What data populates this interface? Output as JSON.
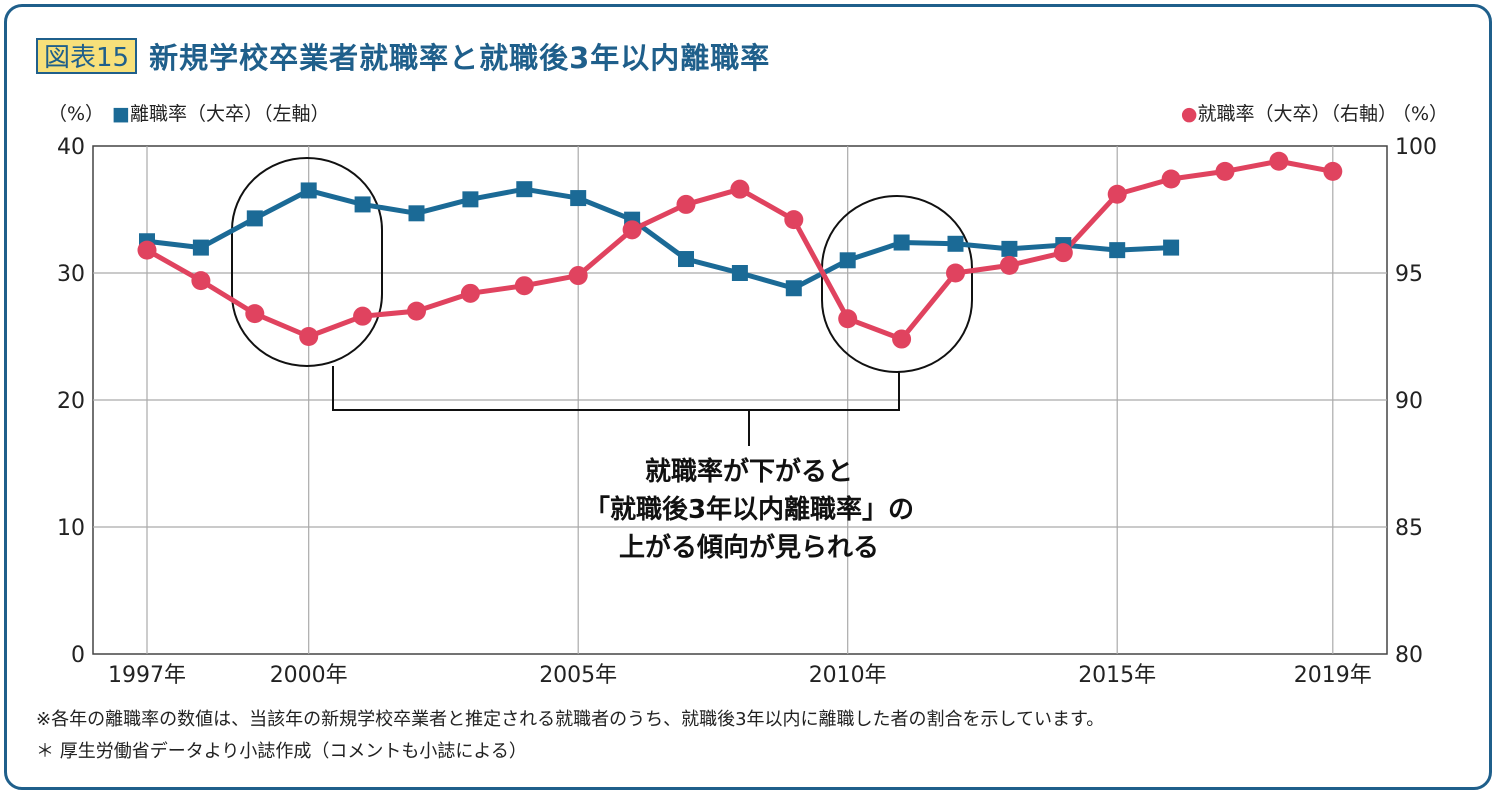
{
  "header": {
    "badge": "図表15",
    "title": "新規学校卒業者就職率と就職後3年以内離職率"
  },
  "notes": [
    "※各年の離職率の数値は、当該年の新規学校卒業者と推定される就職者のうち、就職後3年以内に離職した者の割合を示しています。",
    "＊ 厚生労働省データより小誌作成（コメントも小誌による）"
  ],
  "chart_data": {
    "type": "line",
    "x": [
      1997,
      1998,
      1999,
      2000,
      2001,
      2002,
      2003,
      2004,
      2005,
      2006,
      2007,
      2008,
      2009,
      2010,
      2011,
      2012,
      2013,
      2014,
      2015,
      2016,
      2017,
      2018,
      2019
    ],
    "x_tick_labels": [
      {
        "x": 1997,
        "label": "1997年"
      },
      {
        "x": 2000,
        "label": "2000年"
      },
      {
        "x": 2005,
        "label": "2005年"
      },
      {
        "x": 2010,
        "label": "2010年"
      },
      {
        "x": 2015,
        "label": "2015年"
      },
      {
        "x": 2019,
        "label": "2019年"
      }
    ],
    "y_left": {
      "unit": "（%）",
      "range": [
        0,
        40
      ],
      "ticks": [
        "0",
        "10",
        "20",
        "30",
        "40"
      ]
    },
    "y_right": {
      "unit": "（%）",
      "range": [
        80,
        100
      ],
      "ticks": [
        "80",
        "85",
        "90",
        "95",
        "100"
      ]
    },
    "series": [
      {
        "name": "■離職率（大卒）（左軸）",
        "axis": "left",
        "color": "#1b6a96",
        "marker": "square",
        "values": [
          32.5,
          32.0,
          34.3,
          36.5,
          35.4,
          34.7,
          35.8,
          36.6,
          35.9,
          34.2,
          31.1,
          30.0,
          28.8,
          31.0,
          32.4,
          32.3,
          31.9,
          32.2,
          31.8,
          32.0,
          null,
          null,
          null
        ]
      },
      {
        "name": "●就職率（大卒）（右軸）",
        "axis": "right",
        "color": "#e0435f",
        "marker": "circle",
        "values": [
          95.9,
          94.7,
          93.4,
          92.5,
          93.3,
          93.5,
          94.2,
          94.5,
          94.9,
          96.7,
          97.7,
          98.3,
          97.1,
          93.2,
          92.4,
          95.0,
          95.3,
          95.8,
          98.1,
          98.7,
          99.0,
          99.4,
          99.0
        ]
      }
    ],
    "annotation": [
      "就職率が下がると",
      "「就職後3年以内離職率」の",
      "上がる傾向が見られる"
    ]
  }
}
